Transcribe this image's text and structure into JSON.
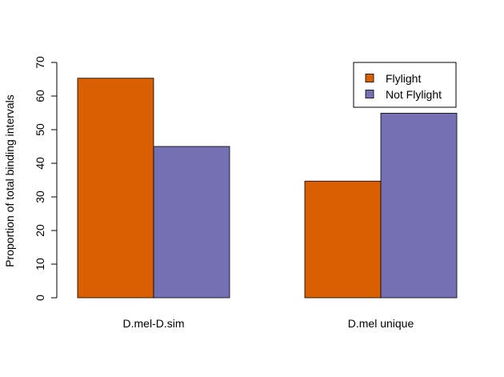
{
  "chart_data": {
    "type": "bar",
    "title": "",
    "xlabel": "",
    "ylabel": "Proportion of total binding intervals",
    "categories": [
      "D.mel-D.sim",
      "D.mel unique"
    ],
    "series": [
      {
        "name": "Flylight",
        "color": "#d95f02",
        "values": [
          65.3,
          34.7
        ]
      },
      {
        "name": "Not Flylight",
        "color": "#7570b3",
        "values": [
          45.0,
          54.9
        ]
      }
    ],
    "ylim": [
      0,
      70
    ],
    "yticks": [
      "0",
      "10",
      "20",
      "30",
      "40",
      "50",
      "60",
      "70"
    ],
    "grid": false,
    "legend_position": "top-right"
  }
}
